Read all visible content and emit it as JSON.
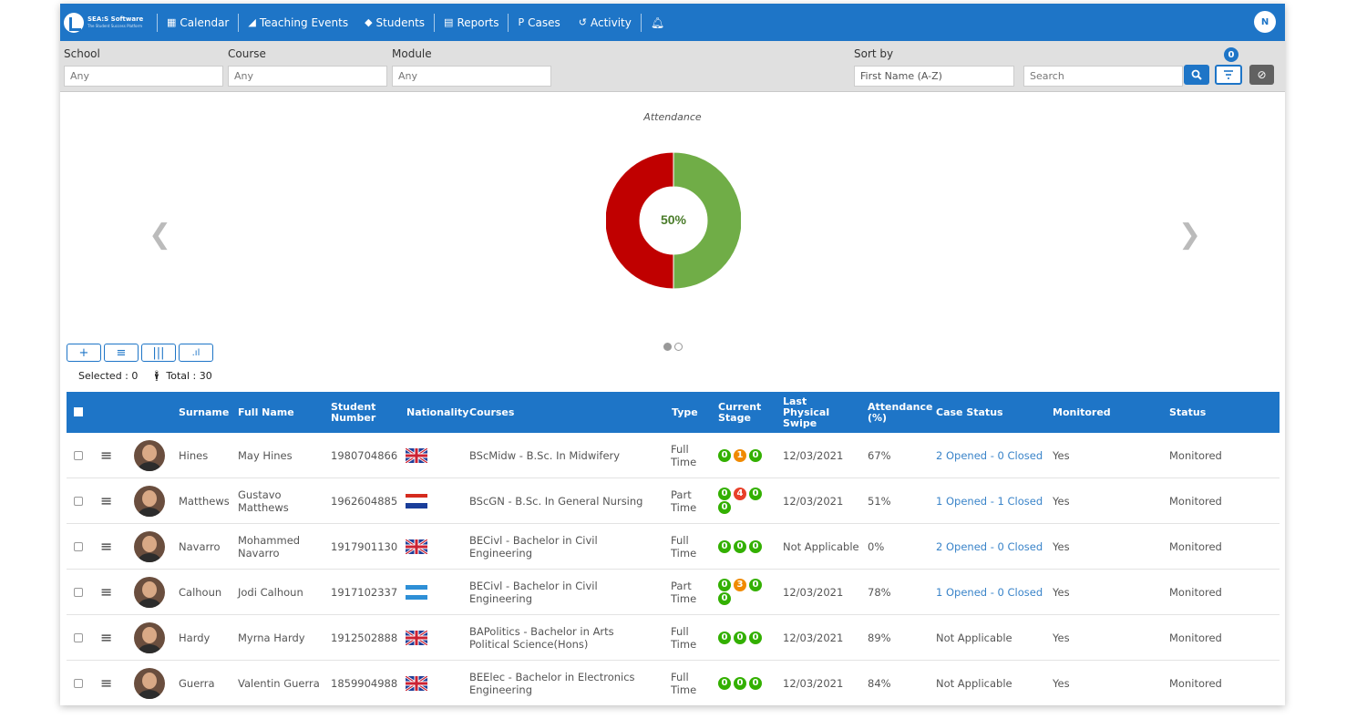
{
  "nav": {
    "brand": "SEA:S Software",
    "brand_sub": "The Student Success Platform",
    "items": [
      {
        "label": "Calendar",
        "icon": "calendar-icon"
      },
      {
        "label": "Teaching Events",
        "icon": "book-icon"
      },
      {
        "label": "Students",
        "icon": "graduation-cap-icon"
      },
      {
        "label": "Reports",
        "icon": "file-icon"
      },
      {
        "label": "Cases",
        "icon": "case-icon"
      },
      {
        "label": "Activity",
        "icon": "history-icon"
      }
    ],
    "user_initial": "N"
  },
  "filters": {
    "school": {
      "label": "School",
      "placeholder": "Any"
    },
    "course": {
      "label": "Course",
      "placeholder": "Any"
    },
    "module": {
      "label": "Module",
      "placeholder": "Any"
    },
    "sort": {
      "label": "Sort by",
      "value": "First Name (A-Z)"
    },
    "search": {
      "placeholder": "Search"
    },
    "filter_count": "0"
  },
  "chart_data": {
    "type": "pie",
    "title": "Attendance",
    "center_label": "50%",
    "slices": [
      {
        "value": 50,
        "color": "#70ad47"
      },
      {
        "value": 50,
        "color": "#c00000"
      }
    ]
  },
  "summary": {
    "selected": "Selected : 0",
    "total": "Total : 30"
  },
  "table": {
    "columns": [
      "Surname",
      "Full Name",
      "Student Number",
      "Nationality",
      "Courses",
      "Type",
      "Current Stage",
      "Last Physical Swipe",
      "Attendance (%)",
      "Case Status",
      "Monitored",
      "Status"
    ],
    "rows": [
      {
        "surname": "Hines",
        "full_name": "May Hines",
        "number": "1980704866",
        "flag": "uk",
        "course": "BScMidw - B.Sc. In Midwifery",
        "type": "Full Time",
        "stages": [
          {
            "v": "0",
            "c": "#33b000"
          },
          {
            "v": "1",
            "c": "#f08a00"
          },
          {
            "v": "0",
            "c": "#33b000"
          }
        ],
        "swipe": "12/03/2021",
        "attendance": "67%",
        "case": "2 Opened - 0 Closed",
        "case_link": true,
        "monitored": "Yes",
        "status": "Monitored"
      },
      {
        "surname": "Matthews",
        "full_name": "Gustavo Matthews",
        "number": "1962604885",
        "flag": "redwhiteblue",
        "course": "BScGN - B.Sc. In General Nursing",
        "type": "Part Time",
        "stages": [
          {
            "v": "0",
            "c": "#33b000"
          },
          {
            "v": "4",
            "c": "#e8402a"
          },
          {
            "v": "0",
            "c": "#33b000"
          },
          {
            "v": "0",
            "c": "#33b000"
          }
        ],
        "swipe": "12/03/2021",
        "attendance": "51%",
        "case": "1 Opened - 1 Closed",
        "case_link": true,
        "monitored": "Yes",
        "status": "Monitored"
      },
      {
        "surname": "Navarro",
        "full_name": "Mohammed Navarro",
        "number": "1917901130",
        "flag": "uk",
        "course": "BECivl - Bachelor in Civil Engineering",
        "type": "Full Time",
        "stages": [
          {
            "v": "0",
            "c": "#33b000"
          },
          {
            "v": "0",
            "c": "#33b000"
          },
          {
            "v": "0",
            "c": "#33b000"
          }
        ],
        "swipe": "Not Applicable",
        "attendance": "0%",
        "case": "2 Opened - 0 Closed",
        "case_link": true,
        "monitored": "Yes",
        "status": "Monitored"
      },
      {
        "surname": "Calhoun",
        "full_name": "Jodi Calhoun",
        "number": "1917102337",
        "flag": "bluewhiteblue",
        "course": "BECivl - Bachelor in Civil Engineering",
        "type": "Part Time",
        "stages": [
          {
            "v": "0",
            "c": "#33b000"
          },
          {
            "v": "3",
            "c": "#f08a00"
          },
          {
            "v": "0",
            "c": "#33b000"
          },
          {
            "v": "0",
            "c": "#33b000"
          }
        ],
        "swipe": "12/03/2021",
        "attendance": "78%",
        "case": "1 Opened - 0 Closed",
        "case_link": true,
        "monitored": "Yes",
        "status": "Monitored"
      },
      {
        "surname": "Hardy",
        "full_name": "Myrna Hardy",
        "number": "1912502888",
        "flag": "uk",
        "course": "BAPolitics - Bachelor in Arts Political Science(Hons)",
        "type": "Full Time",
        "stages": [
          {
            "v": "0",
            "c": "#33b000"
          },
          {
            "v": "0",
            "c": "#33b000"
          },
          {
            "v": "0",
            "c": "#33b000"
          }
        ],
        "swipe": "12/03/2021",
        "attendance": "89%",
        "case": "Not Applicable",
        "case_link": false,
        "monitored": "Yes",
        "status": "Monitored"
      },
      {
        "surname": "Guerra",
        "full_name": "Valentin Guerra",
        "number": "1859904988",
        "flag": "uk",
        "course": "BEElec - Bachelor in Electronics Engineering",
        "type": "Full Time",
        "stages": [
          {
            "v": "0",
            "c": "#33b000"
          },
          {
            "v": "0",
            "c": "#33b000"
          },
          {
            "v": "0",
            "c": "#33b000"
          }
        ],
        "swipe": "12/03/2021",
        "attendance": "84%",
        "case": "Not Applicable",
        "case_link": false,
        "monitored": "Yes",
        "status": "Monitored"
      }
    ]
  }
}
